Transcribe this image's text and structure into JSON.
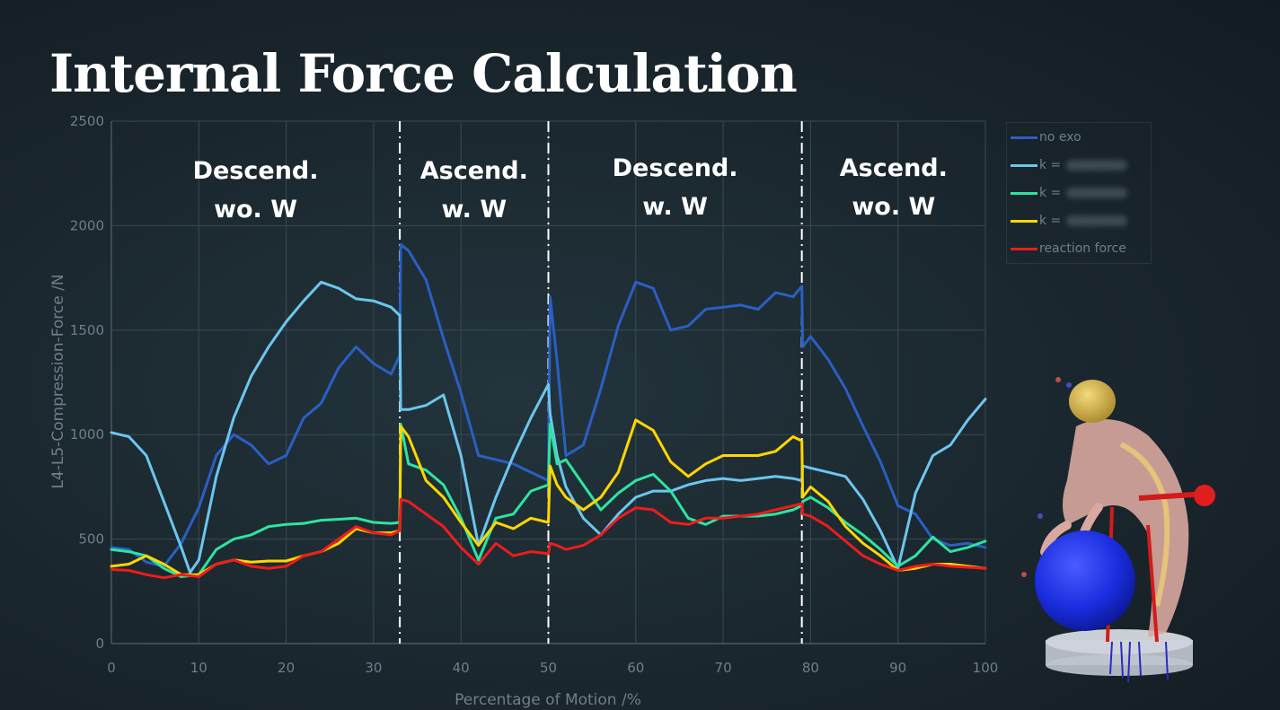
{
  "title": "Internal Force Calculation",
  "chart_data": {
    "type": "line",
    "xlabel": "Percentage of Motion /%",
    "ylabel": "L4-L5-Compression-Force /N",
    "xlim": [
      0,
      100
    ],
    "ylim": [
      0,
      2500
    ],
    "x_ticks": [
      "0",
      "10",
      "20",
      "30",
      "40",
      "50",
      "60",
      "70",
      "80",
      "90",
      "100"
    ],
    "y_ticks": [
      "0",
      "500",
      "1000",
      "1500",
      "2000",
      "2500"
    ],
    "grid": true,
    "legend_position": "top-right",
    "phase_boundaries": [
      33,
      50,
      79
    ],
    "phases": [
      {
        "line1": "Descend.",
        "line2": "wo. W"
      },
      {
        "line1": "Ascend.",
        "line2": "w. W"
      },
      {
        "line1": "Descend.",
        "line2": "w. W"
      },
      {
        "line1": "Ascend.",
        "line2": "wo. W"
      }
    ],
    "series": [
      {
        "name": "no exo",
        "color": "#2a5fc4",
        "x": [
          0,
          2,
          4,
          6,
          8,
          10,
          12,
          14,
          16,
          18,
          20,
          22,
          24,
          26,
          28,
          30,
          32,
          33,
          33.1,
          34,
          36,
          38,
          40,
          42,
          44,
          46,
          48,
          50,
          50.2,
          51,
          52,
          54,
          56,
          58,
          60,
          62,
          64,
          66,
          68,
          70,
          72,
          74,
          76,
          78,
          79,
          79.1,
          80,
          82,
          84,
          86,
          88,
          90,
          92,
          94,
          96,
          98,
          100
        ],
        "y": [
          460,
          450,
          390,
          370,
          480,
          650,
          900,
          1000,
          950,
          860,
          900,
          1080,
          1150,
          1320,
          1420,
          1340,
          1290,
          1380,
          1910,
          1880,
          1740,
          1460,
          1200,
          900,
          880,
          860,
          820,
          780,
          1660,
          1350,
          900,
          950,
          1220,
          1520,
          1730,
          1700,
          1500,
          1520,
          1600,
          1610,
          1620,
          1600,
          1680,
          1660,
          1710,
          1420,
          1470,
          1360,
          1220,
          1040,
          870,
          660,
          620,
          500,
          470,
          480,
          460
        ]
      },
      {
        "name": "k = ",
        "color": "#6cc6ee",
        "x": [
          0,
          2,
          4,
          6,
          8,
          9,
          10,
          12,
          14,
          16,
          18,
          20,
          22,
          24,
          26,
          28,
          30,
          32,
          33,
          33.1,
          34,
          36,
          38,
          40,
          42,
          44,
          46,
          48,
          50,
          50.2,
          51,
          52,
          54,
          56,
          58,
          60,
          62,
          64,
          66,
          68,
          70,
          72,
          74,
          76,
          78,
          79,
          79.1,
          80,
          82,
          84,
          86,
          88,
          90,
          92,
          94,
          96,
          98,
          100
        ],
        "y": [
          1010,
          990,
          900,
          680,
          460,
          340,
          400,
          800,
          1080,
          1280,
          1420,
          1540,
          1640,
          1730,
          1700,
          1650,
          1640,
          1610,
          1570,
          1120,
          1120,
          1140,
          1190,
          900,
          470,
          700,
          900,
          1080,
          1240,
          1100,
          900,
          750,
          600,
          520,
          620,
          700,
          730,
          730,
          760,
          780,
          790,
          780,
          790,
          800,
          790,
          780,
          850,
          840,
          820,
          800,
          690,
          540,
          360,
          720,
          900,
          950,
          1070,
          1170
        ]
      },
      {
        "name": "k = ",
        "color": "#2ee4a0",
        "x": [
          0,
          2,
          4,
          6,
          8,
          10,
          12,
          14,
          16,
          18,
          20,
          22,
          24,
          26,
          28,
          30,
          32,
          33,
          33.1,
          34,
          36,
          38,
          40,
          42,
          44,
          46,
          48,
          50,
          50.2,
          51,
          52,
          54,
          56,
          58,
          60,
          62,
          64,
          66,
          68,
          70,
          72,
          74,
          76,
          78,
          79,
          79.1,
          80,
          82,
          84,
          86,
          88,
          90,
          92,
          94,
          96,
          98,
          100
        ],
        "y": [
          450,
          440,
          420,
          360,
          320,
          330,
          450,
          500,
          520,
          560,
          570,
          575,
          590,
          595,
          600,
          580,
          575,
          580,
          1050,
          860,
          830,
          760,
          600,
          400,
          600,
          620,
          730,
          760,
          1050,
          860,
          880,
          760,
          640,
          720,
          780,
          810,
          730,
          600,
          570,
          610,
          610,
          610,
          620,
          640,
          660,
          680,
          700,
          650,
          580,
          520,
          450,
          370,
          420,
          510,
          440,
          460,
          490
        ]
      },
      {
        "name": "k = ",
        "color": "#ffd700",
        "x": [
          0,
          2,
          4,
          6,
          8,
          10,
          12,
          14,
          16,
          18,
          20,
          22,
          24,
          26,
          28,
          30,
          32,
          33,
          33.1,
          34,
          36,
          38,
          40,
          42,
          44,
          46,
          48,
          50,
          50.2,
          51,
          52,
          54,
          56,
          58,
          60,
          62,
          64,
          66,
          68,
          70,
          72,
          74,
          76,
          78,
          79,
          79.1,
          80,
          82,
          84,
          86,
          88,
          90,
          92,
          94,
          96,
          98,
          100
        ],
        "y": [
          370,
          380,
          420,
          380,
          330,
          330,
          380,
          400,
          390,
          395,
          395,
          420,
          440,
          480,
          550,
          530,
          530,
          540,
          1040,
          990,
          780,
          700,
          580,
          470,
          580,
          550,
          600,
          580,
          850,
          760,
          700,
          640,
          700,
          820,
          1070,
          1020,
          870,
          800,
          860,
          900,
          900,
          900,
          920,
          990,
          970,
          700,
          750,
          680,
          560,
          480,
          420,
          350,
          360,
          380,
          380,
          370,
          360
        ]
      },
      {
        "name": "reaction force",
        "color": "#ee1c1c",
        "x": [
          0,
          2,
          4,
          6,
          8,
          10,
          12,
          14,
          16,
          18,
          20,
          22,
          24,
          26,
          28,
          30,
          32,
          33,
          33.1,
          34,
          36,
          38,
          40,
          42,
          44,
          46,
          48,
          50,
          50.2,
          51,
          52,
          54,
          56,
          58,
          60,
          62,
          64,
          66,
          68,
          70,
          72,
          74,
          76,
          78,
          79,
          79.1,
          80,
          82,
          84,
          86,
          88,
          90,
          92,
          94,
          96,
          98,
          100
        ],
        "y": [
          355,
          350,
          330,
          315,
          330,
          320,
          380,
          400,
          370,
          360,
          370,
          420,
          440,
          500,
          560,
          530,
          520,
          540,
          690,
          680,
          620,
          560,
          460,
          380,
          480,
          420,
          440,
          430,
          480,
          470,
          450,
          470,
          520,
          600,
          650,
          640,
          580,
          570,
          600,
          600,
          610,
          620,
          640,
          660,
          670,
          620,
          610,
          560,
          490,
          420,
          380,
          350,
          370,
          380,
          370,
          365,
          360
        ]
      }
    ]
  },
  "legend": [
    {
      "label": "no exo",
      "color": "#2a5fc4",
      "blurred": false
    },
    {
      "label": "k = ",
      "color": "#6cc6ee",
      "blurred": true
    },
    {
      "label": "k = ",
      "color": "#2ee4a0",
      "blurred": true
    },
    {
      "label": "k = ",
      "color": "#ffd700",
      "blurred": true
    },
    {
      "label": "reaction force",
      "color": "#ee1c1c",
      "blurred": false
    }
  ]
}
